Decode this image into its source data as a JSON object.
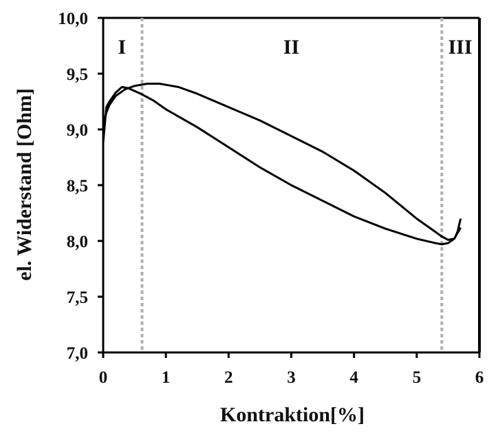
{
  "chart_data": {
    "type": "line",
    "xlabel": "Kontraktion[%]",
    "ylabel": "el. Widerstand  [Ohm]",
    "xlim": [
      0,
      6
    ],
    "ylim": [
      7.0,
      10.0
    ],
    "x_ticks": [
      "0",
      "1",
      "2",
      "3",
      "4",
      "5",
      "6"
    ],
    "y_ticks": [
      "7,0",
      "7,5",
      "8,0",
      "8,5",
      "9,0",
      "9,5",
      "10,0"
    ],
    "grid": false,
    "regions": [
      {
        "label": "I",
        "x": 0.3
      },
      {
        "label": "II",
        "x": 3.0
      },
      {
        "label": "III",
        "x": 5.8
      }
    ],
    "boundaries": [
      0.62,
      5.4
    ],
    "series": [
      {
        "x": [
          0.0,
          0.05,
          0.1,
          0.2,
          0.3,
          0.4,
          0.6,
          0.8,
          1.0,
          1.5,
          2.0,
          2.5,
          3.0,
          3.5,
          4.0,
          4.5,
          5.0,
          5.3,
          5.4,
          5.5,
          5.6,
          5.7
        ],
        "values": [
          8.88,
          9.2,
          9.25,
          9.33,
          9.38,
          9.37,
          9.32,
          9.26,
          9.18,
          9.02,
          8.84,
          8.66,
          8.5,
          8.36,
          8.22,
          8.11,
          8.02,
          7.98,
          7.97,
          7.98,
          8.02,
          8.12
        ]
      },
      {
        "x": [
          0.0,
          0.05,
          0.1,
          0.2,
          0.35,
          0.5,
          0.7,
          0.9,
          1.2,
          1.5,
          2.0,
          2.5,
          3.0,
          3.5,
          4.0,
          4.5,
          5.0,
          5.3,
          5.4,
          5.5,
          5.6,
          5.65,
          5.7
        ],
        "values": [
          9.05,
          9.15,
          9.22,
          9.3,
          9.36,
          9.39,
          9.41,
          9.41,
          9.38,
          9.32,
          9.2,
          9.08,
          8.94,
          8.8,
          8.63,
          8.43,
          8.2,
          8.08,
          8.04,
          8.01,
          8.02,
          8.08,
          8.2
        ]
      }
    ]
  }
}
